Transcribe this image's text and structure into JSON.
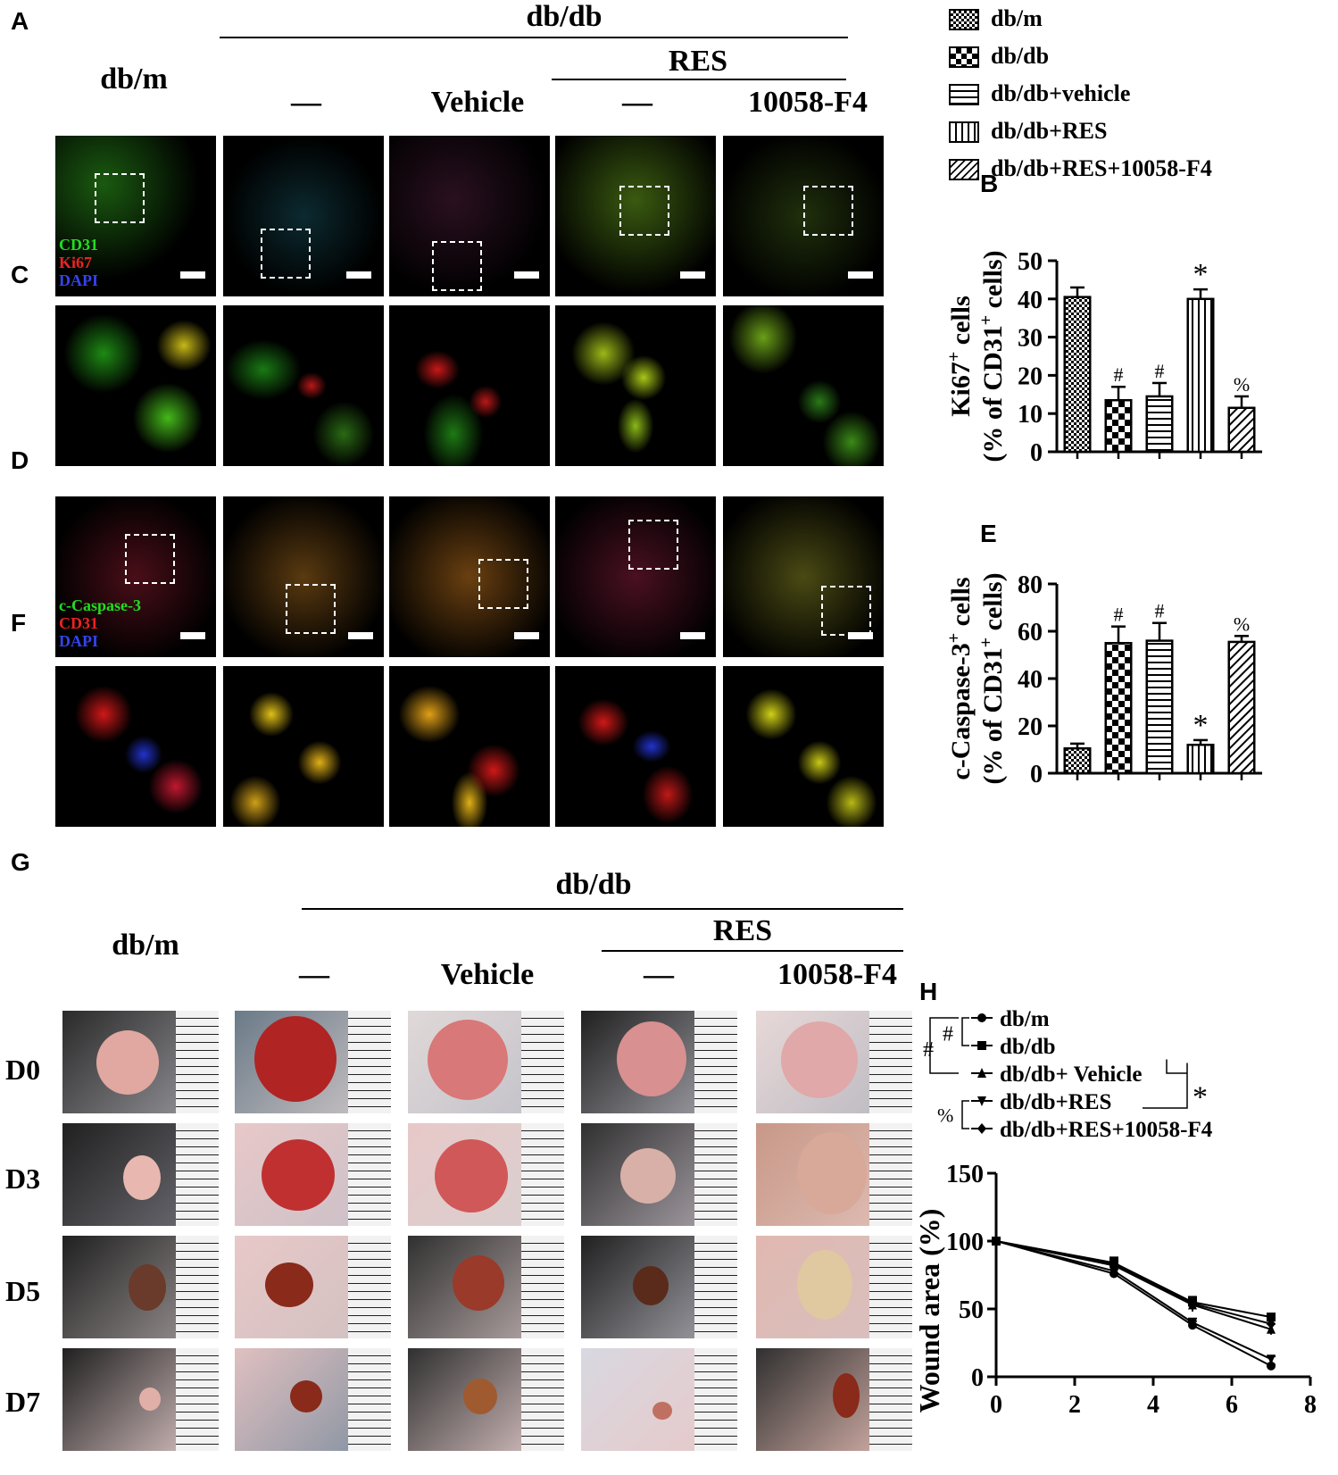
{
  "panel_labels": [
    "A",
    "B",
    "C",
    "D",
    "E",
    "F",
    "G",
    "H"
  ],
  "top_header": {
    "group": "db/db",
    "res": "RES",
    "dbm": "db/m",
    "cols": [
      "—",
      "Vehicle",
      "—",
      "10058-F4"
    ]
  },
  "stain_legend_A": {
    "l1": "CD31",
    "l2": "Ki67",
    "l3": "DAPI",
    "c1": "#22dd22",
    "c2": "#ee2222",
    "c3": "#3344ee"
  },
  "stain_legend_D": {
    "l1": "c-Caspase-3",
    "l2": "CD31",
    "l3": "DAPI",
    "c1": "#22dd22",
    "c2": "#ee2222",
    "c3": "#3344ee"
  },
  "bar_legend": [
    "db/m",
    "db/db",
    "db/db+vehicle",
    "db/db+RES",
    "db/db+RES+10058-F4"
  ],
  "bottom_header": {
    "group": "db/db",
    "res": "RES",
    "dbm": "db/m",
    "cols": [
      "—",
      "Vehicle",
      "—",
      "10058-F4"
    ]
  },
  "days": [
    "D0",
    "D3",
    "D5",
    "D7"
  ],
  "line_legend": [
    "db/m",
    "db/db",
    "db/db+ Vehicle",
    "db/db+RES",
    "db/db+RES+10058-F4"
  ],
  "line_sig": {
    "hash": "#",
    "star": "*",
    "pct": "%"
  },
  "chart_data": [
    {
      "type": "bar",
      "panel": "B",
      "categories": [
        "db/m",
        "db/db",
        "db/db+vehicle",
        "db/db+RES",
        "db/db+RES+10058-F4"
      ],
      "values": [
        40.5,
        13.5,
        14.5,
        40,
        11.5
      ],
      "errors": [
        2.5,
        3.5,
        3.5,
        2.5,
        3
      ],
      "annotations": [
        "",
        "#",
        "#",
        "*",
        "%"
      ],
      "ylabel_main": "Ki67",
      "ylabel_sup": "+",
      "ylabel_rest": " cells",
      "ylabel2_main": "(% of CD31",
      "ylabel2_sup": "+",
      "ylabel2_rest": " cells)",
      "ylim": [
        0,
        50
      ],
      "yticks": [
        0,
        10,
        20,
        30,
        40,
        50
      ]
    },
    {
      "type": "bar",
      "panel": "E",
      "categories": [
        "db/m",
        "db/db",
        "db/db+vehicle",
        "db/db+RES",
        "db/db+RES+10058-F4"
      ],
      "values": [
        10.5,
        55,
        56,
        12,
        55.5
      ],
      "errors": [
        2,
        7,
        7.5,
        2,
        2.5
      ],
      "annotations": [
        "",
        "#",
        "#",
        "*",
        "%"
      ],
      "ylabel_main": "c-Caspase-3",
      "ylabel_sup": "+",
      "ylabel_rest": " cells",
      "ylabel2_main": "(% of CD31",
      "ylabel2_sup": "+",
      "ylabel2_rest": " cells)",
      "ylim": [
        0,
        80
      ],
      "yticks": [
        0,
        20,
        40,
        60,
        80
      ]
    },
    {
      "type": "line",
      "panel": "H",
      "x": [
        0,
        3,
        5,
        7
      ],
      "series": [
        {
          "name": "db/m",
          "values": [
            100,
            76,
            38,
            8
          ],
          "errors": [
            0,
            3,
            3,
            1
          ]
        },
        {
          "name": "db/db",
          "values": [
            100,
            84,
            55,
            44
          ],
          "errors": [
            0,
            4,
            4,
            2
          ]
        },
        {
          "name": "db/db+ Vehicle",
          "values": [
            100,
            82,
            53,
            35
          ],
          "errors": [
            0,
            4,
            5,
            4
          ]
        },
        {
          "name": "db/db+RES",
          "values": [
            100,
            78,
            40,
            13
          ],
          "errors": [
            0,
            3,
            3,
            2
          ]
        },
        {
          "name": "db/db+RES+10058-F4",
          "values": [
            100,
            83,
            54,
            39
          ],
          "errors": [
            0,
            4,
            4,
            3
          ]
        }
      ],
      "ylabel": "Wound area (%)",
      "xlim": [
        0,
        8
      ],
      "ylim": [
        0,
        150
      ],
      "xticks": [
        0,
        2,
        4,
        6,
        8
      ],
      "yticks": [
        0,
        50,
        100,
        150
      ]
    }
  ]
}
